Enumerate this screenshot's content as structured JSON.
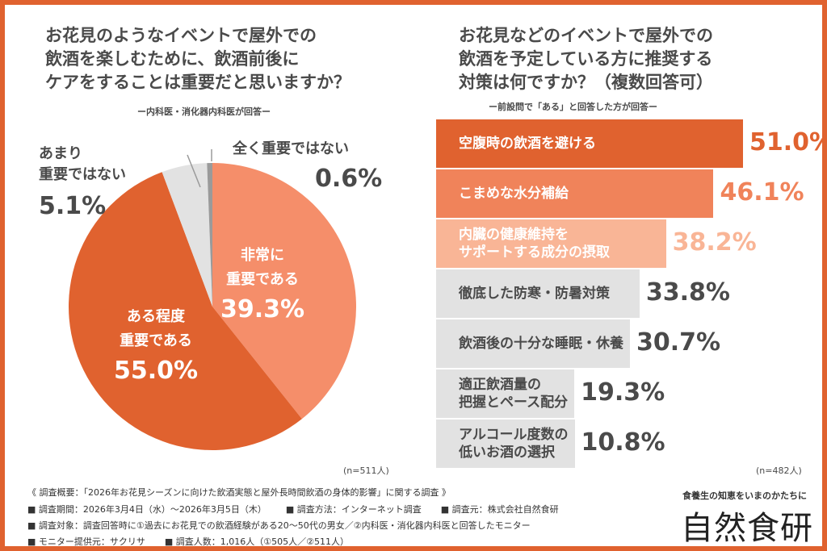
{
  "chart_data": [
    {
      "type": "pie",
      "title": "お花見のようなイベントで屋外での\n飲酒を楽しむために、飲酒前後に\nケアをすることは重要だと思いますか？",
      "subtitle": "ー内科医・消化器内科医が回答ー",
      "note": "(n=511人)",
      "slices": [
        {
          "label": "非常に\n重要である",
          "value": 39.3,
          "display": "39.3%",
          "color": "#f58e6a"
        },
        {
          "label": "ある程度\n重要である",
          "value": 55.0,
          "display": "55.0%",
          "color": "#e0622f"
        },
        {
          "label": "あまり\n重要ではない",
          "value": 5.1,
          "display": "5.1%",
          "color": "#e2e2e2"
        },
        {
          "label": "全く重要ではない",
          "value": 0.6,
          "display": "0.6%",
          "color": "#9a9a9a"
        }
      ]
    },
    {
      "type": "bar",
      "orientation": "horizontal",
      "title": "お花見などのイベントで屋外での\n飲酒を予定している方に推奨する\n対策は何ですか？（複数回答可）",
      "subtitle": "ー前設問で「ある」と回答した方が回答ー",
      "note": "(n=482人)",
      "categories": [
        "空腹時の飲酒を避ける",
        "こまめな水分補給",
        "内臓の健康維持を\nサポートする成分の摂取",
        "徹底した防寒・防暑対策",
        "飲酒後の十分な睡眠・休養",
        "適正飲酒量の\n把握とペース配分",
        "アルコール度数の\n低いお酒の選択"
      ],
      "values": [
        51.0,
        46.1,
        38.2,
        33.8,
        30.7,
        19.3,
        10.8
      ],
      "display": [
        "51.0%",
        "46.1%",
        "38.2%",
        "33.8%",
        "30.7%",
        "19.3%",
        "10.8%"
      ],
      "bar_colors": [
        "#e0622f",
        "#f0835a",
        "#f9b596",
        "#e2e2e2",
        "#e2e2e2",
        "#e2e2e2",
        "#e2e2e2"
      ],
      "label_colors": [
        "#ffffff",
        "#ffffff",
        "#ffffff",
        "#4a4a4a",
        "#4a4a4a",
        "#4a4a4a",
        "#4a4a4a"
      ],
      "value_colors": [
        "#e0622f",
        "#f0835a",
        "#f9b596",
        "#4a4a4a",
        "#4a4a4a",
        "#4a4a4a",
        "#4a4a4a"
      ]
    }
  ],
  "footer": {
    "line1": "《 調査概要：「2026年お花見シーズンに向けた飲酒実態と屋外長時間飲酒の身体的影響」に関する調査 》",
    "line2a": "■ 調査期間：2026年3月4日（水）～2026年3月5日（木）",
    "line2b": "■ 調査方法：インターネット調査",
    "line2c": "■ 調査元：株式会社自然食研",
    "line3": "■ 調査対象：調査回答時に①過去にお花見での飲酒経験がある20～50代の男女／②内科医・消化器内科医と回答したモニター",
    "line4a": "■ モニター提供元：サクリサ",
    "line4b": "■ 調査人数：1,016人（①505人／②511人）"
  },
  "brand": {
    "tagline": "食養生の知恵をいまのかたちに",
    "logo": "自然食研"
  }
}
